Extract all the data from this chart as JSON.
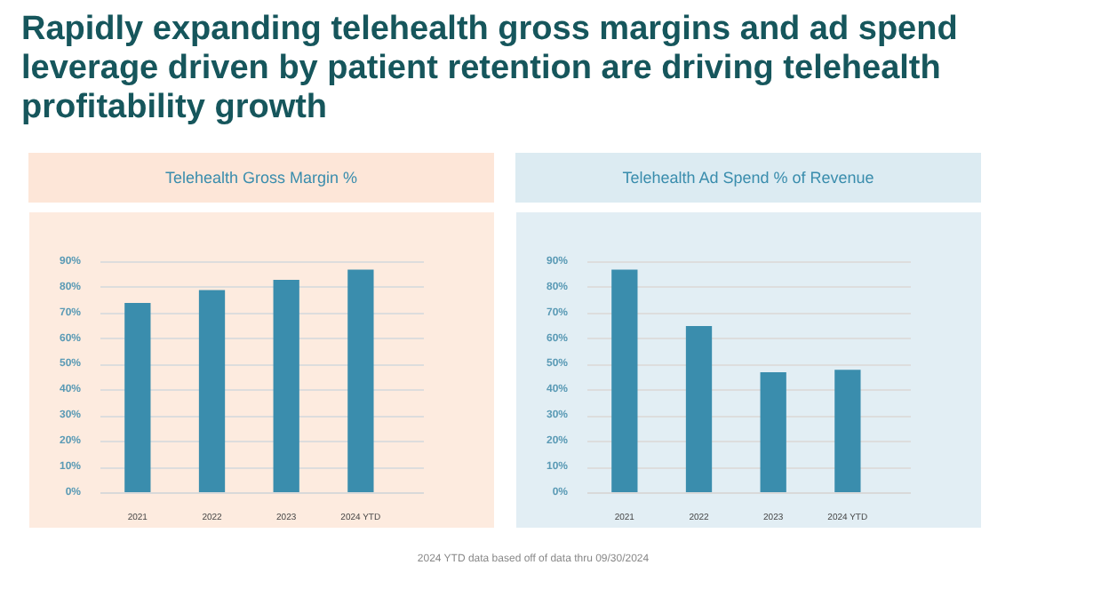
{
  "chart_data": [
    {
      "type": "bar",
      "title": "Telehealth Gross Margin %",
      "annotations": [
        "Rapidly expanding telehealth gross margins and ad spend leverage driven by patient retention are driving telehealth profitability growth"
      ],
      "categories": [
        "2021",
        "2022",
        "2023",
        "2024 YTD"
      ],
      "values": [
        74,
        79,
        83,
        87
      ],
      "color": "#3a8dad",
      "ylim": [
        0,
        92
      ],
      "yticks": [
        {
          "value": 0,
          "label": "0%"
        },
        {
          "value": 10,
          "label": "10%"
        },
        {
          "value": 20,
          "label": "20%"
        },
        {
          "value": 30,
          "label": "30%"
        },
        {
          "value": 40,
          "label": "40%"
        },
        {
          "value": 50,
          "label": "50%"
        },
        {
          "value": 60,
          "label": "60%"
        },
        {
          "value": 70,
          "label": "70%"
        },
        {
          "value": 80,
          "label": "80%"
        },
        {
          "value": 90,
          "label": "90%"
        }
      ],
      "grid": "y"
    },
    {
      "type": "bar",
      "title": "Telehealth Ad Spend % of Revenue",
      "annotations": [
        "2024 YTD data based off of data thru 09/30/2024"
      ],
      "categories": [
        "2021",
        "2022",
        "2023",
        "2024 YTD"
      ],
      "values": [
        87,
        65,
        47,
        48
      ],
      "color": "#3a8dad",
      "ylim": [
        0,
        92
      ],
      "yticks": [
        {
          "value": 0,
          "label": "0%"
        },
        {
          "value": 10,
          "label": "10%"
        },
        {
          "value": 20,
          "label": "20%"
        },
        {
          "value": 30,
          "label": "30%"
        },
        {
          "value": 40,
          "label": "40%"
        },
        {
          "value": 50,
          "label": "50%"
        },
        {
          "value": 60,
          "label": "60%"
        },
        {
          "value": 70,
          "label": "70%"
        },
        {
          "value": 80,
          "label": "80%"
        },
        {
          "value": 90,
          "label": "90%"
        }
      ],
      "grid": "y"
    }
  ]
}
